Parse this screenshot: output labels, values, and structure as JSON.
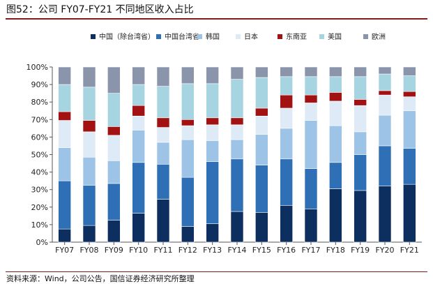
{
  "title": "图52：公司 FY07-FY21 不同地区收入占比",
  "source": "资料来源：Wind，公司公告，国信证券经济研究所整理",
  "colors": [
    "#0d2f5f",
    "#2e6fb5",
    "#9dc3e6",
    "#deebf7",
    "#a31212",
    "#a6d4e0",
    "#8a94aa"
  ],
  "chart_data": {
    "type": "bar",
    "stacked": true,
    "categories": [
      "FY07",
      "FY08",
      "FY09",
      "FY10",
      "FY11",
      "FY12",
      "FY13",
      "FY14",
      "FY15",
      "FY16",
      "FY17",
      "FY18",
      "FY19",
      "FY20",
      "FY21"
    ],
    "ylim": [
      0,
      100
    ],
    "yticks": [
      "0%",
      "10%",
      "20%",
      "30%",
      "40%",
      "50%",
      "60%",
      "70%",
      "80%",
      "90%",
      "100%"
    ],
    "legend_position": "top",
    "series": [
      {
        "name": "中国（除台湾省）",
        "values": [
          7.5,
          9.5,
          12.5,
          16.5,
          24.5,
          9,
          10.5,
          17.5,
          17,
          21,
          19,
          30.5,
          29.5,
          32,
          33
        ]
      },
      {
        "name": "中国台湾省",
        "values": [
          27.5,
          23,
          21,
          29,
          20,
          28,
          35.5,
          30,
          27,
          26.5,
          23,
          15,
          20.5,
          23,
          20.5
        ]
      },
      {
        "name": "韩国",
        "values": [
          19,
          16,
          13,
          18.5,
          12.5,
          21.5,
          12,
          11,
          17.5,
          17.5,
          27.5,
          21,
          13,
          17.5,
          21.5
        ]
      },
      {
        "name": "日本",
        "values": [
          15.5,
          14.5,
          14.5,
          8,
          8.5,
          8,
          9,
          8.5,
          10.5,
          11.5,
          10,
          14,
          15,
          11.5,
          8
        ]
      },
      {
        "name": "东南亚",
        "values": [
          5,
          6.5,
          5,
          6,
          5.5,
          3.5,
          4,
          4,
          4.5,
          7.5,
          4.5,
          5,
          3.5,
          2.5,
          3
        ]
      },
      {
        "name": "美国",
        "values": [
          15.5,
          19,
          19,
          12,
          18,
          20.5,
          19.5,
          22,
          17.5,
          10.5,
          10.5,
          9,
          13,
          9.5,
          9
        ]
      },
      {
        "name": "欧洲",
        "values": [
          10,
          11.5,
          15,
          10,
          11,
          9.5,
          9.5,
          7,
          6,
          5.5,
          5.5,
          5.5,
          5.5,
          4,
          5
        ]
      }
    ]
  }
}
